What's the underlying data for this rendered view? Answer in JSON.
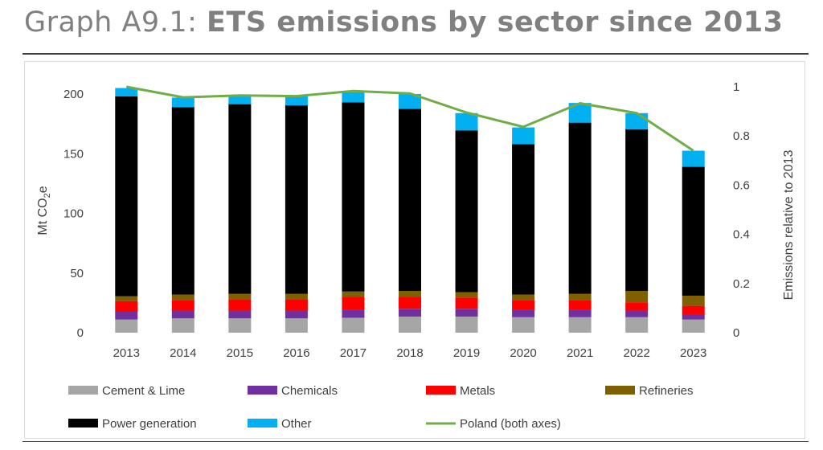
{
  "header": {
    "title_lead": "Graph A9.1:",
    "title_main": "ETS emissions by sector since 2013"
  },
  "chart_data": {
    "type": "bar",
    "stacked": true,
    "categories": [
      "2013",
      "2014",
      "2015",
      "2016",
      "2017",
      "2018",
      "2019",
      "2020",
      "2021",
      "2022",
      "2023"
    ],
    "series": [
      {
        "name": "Cement & Lime",
        "color": "#a6a6a6",
        "values": [
          11,
          12,
          12,
          12,
          12.5,
          13.5,
          13.5,
          13,
          13,
          13,
          11
        ]
      },
      {
        "name": "Chemicals",
        "color": "#7030a0",
        "values": [
          6.5,
          6.5,
          6.5,
          6.5,
          7,
          6.5,
          6.5,
          6.5,
          6.5,
          5.5,
          4.5
        ]
      },
      {
        "name": "Metals",
        "color": "#ff0000",
        "values": [
          9,
          9,
          9.5,
          9.5,
          10.5,
          10,
          9.5,
          8,
          8,
          7,
          7
        ]
      },
      {
        "name": "Refineries",
        "color": "#7f6000",
        "values": [
          4,
          4.5,
          4.5,
          4.5,
          4.5,
          5,
          4.5,
          4.5,
          5,
          9.5,
          8.5
        ]
      },
      {
        "name": "Power generation",
        "color": "#000000",
        "values": [
          167.5,
          157,
          159,
          158,
          158.5,
          152.5,
          135.5,
          126,
          143.5,
          135.5,
          108
        ]
      },
      {
        "name": "Other",
        "color": "#00b0f0",
        "values": [
          7,
          8,
          7,
          8,
          8.5,
          12.5,
          14.5,
          14,
          16.5,
          13.5,
          13.5
        ]
      }
    ],
    "line_series": {
      "name": "Poland (both axes)",
      "color": "#70ad47",
      "values": [
        1.0,
        0.957,
        0.965,
        0.962,
        0.983,
        0.973,
        0.895,
        0.837,
        0.933,
        0.893,
        0.74
      ]
    },
    "ylabel": "Mt CO2e",
    "ylabel_prefix": "Mt CO",
    "ylabel_sub": "2",
    "ylabel_suffix": "e",
    "y2label": "Emissions relative to 2013",
    "ylim": [
      0,
      200
    ],
    "yticks": [
      "0",
      "50",
      "100",
      "150",
      "200"
    ],
    "y2lim": [
      0,
      1
    ],
    "y2ticks": [
      "0",
      "0.2",
      "0.4",
      "0.6",
      "0.8",
      "1"
    ],
    "grid": false,
    "legend_position": "bottom"
  }
}
